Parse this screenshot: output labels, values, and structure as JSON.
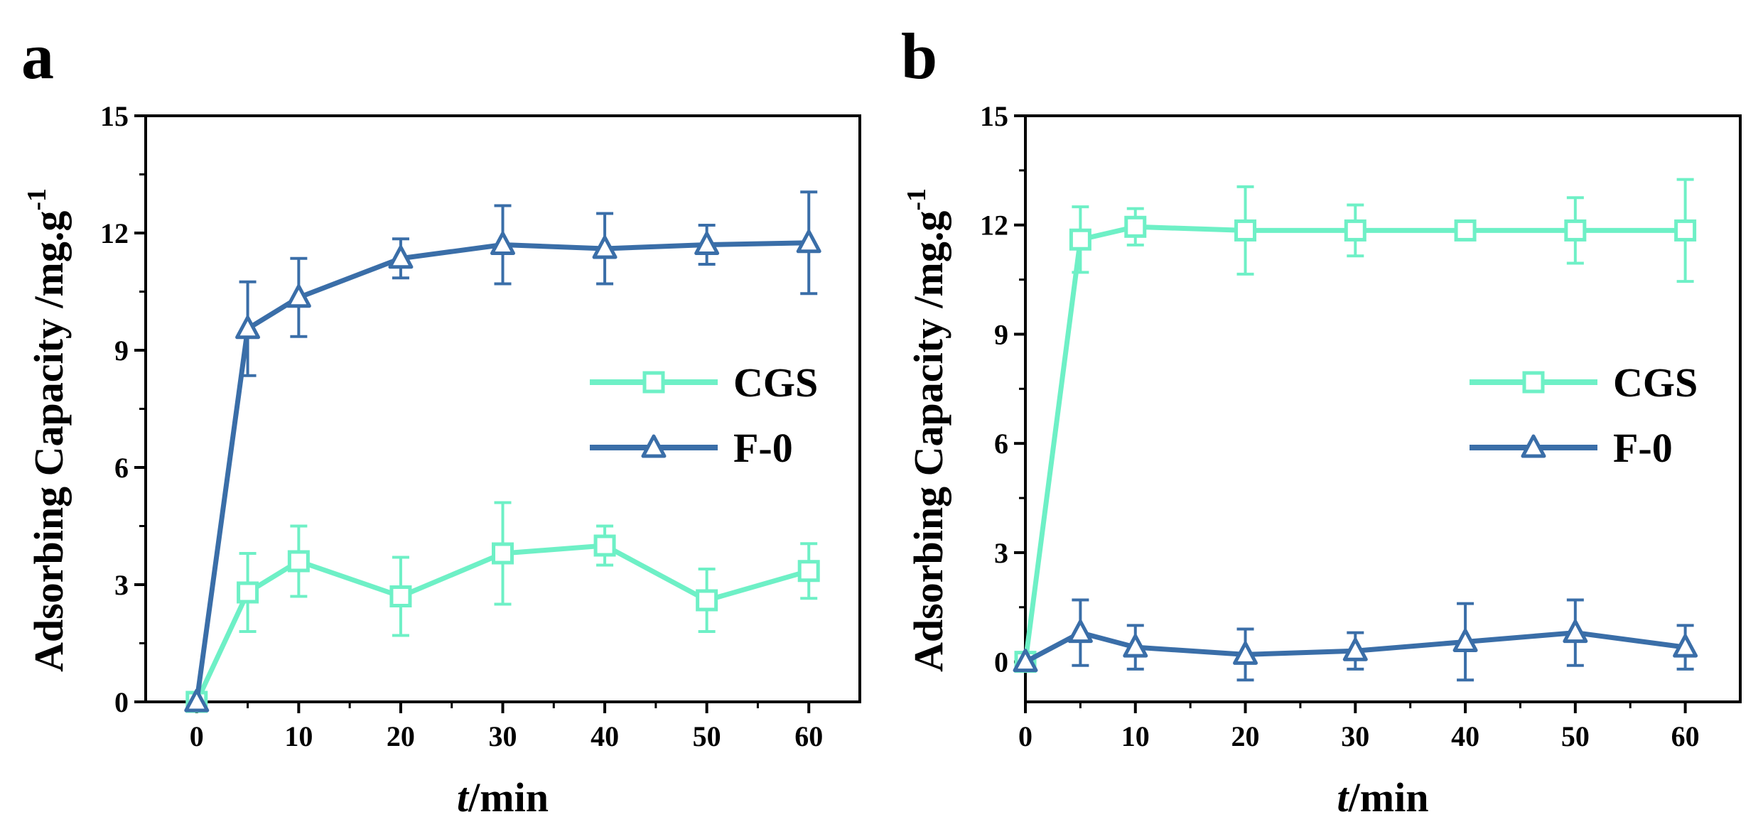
{
  "chart_data": [
    {
      "panel_label": "a",
      "type": "line",
      "xlabel_italic": "t",
      "xlabel_rest": "/min",
      "ylabel_main": "Adsorbing Capacity /mg.g",
      "ylabel_sup": "-1",
      "xlim": [
        -5,
        65
      ],
      "ylim": [
        0,
        15
      ],
      "xticks": [
        0,
        10,
        20,
        30,
        40,
        50,
        60
      ],
      "xtick_labels": [
        "0",
        "10",
        "20",
        "30",
        "40",
        "50",
        "60"
      ],
      "yticks": [
        0,
        3,
        6,
        9,
        12,
        15
      ],
      "ytick_labels": [
        "0",
        "3",
        "6",
        "9",
        "12",
        "15"
      ],
      "legend_position": "right-middle",
      "x": [
        0,
        5,
        10,
        20,
        30,
        40,
        50,
        60
      ],
      "series": [
        {
          "name": "CGS",
          "marker": "square",
          "color": "#6ef0c6",
          "values": [
            0,
            2.8,
            3.6,
            2.7,
            3.8,
            4.0,
            2.6,
            3.35
          ],
          "errors": [
            0,
            1.0,
            0.9,
            1.0,
            1.3,
            0.5,
            0.8,
            0.7
          ]
        },
        {
          "name": "F-0",
          "marker": "triangle",
          "color": "#3a6ea8",
          "values": [
            0,
            9.55,
            10.35,
            11.35,
            11.7,
            11.6,
            11.7,
            11.75
          ],
          "errors": [
            0,
            1.2,
            1.0,
            0.5,
            1.0,
            0.9,
            0.5,
            1.3
          ]
        }
      ]
    },
    {
      "panel_label": "b",
      "type": "line",
      "xlabel_italic": "t",
      "xlabel_rest": "/min",
      "ylabel_main": "Adsorbing Capacity /mg.g",
      "ylabel_sup": "-1",
      "xlim": [
        0,
        65
      ],
      "ylim": [
        -1.1,
        15
      ],
      "xticks": [
        0,
        10,
        20,
        30,
        40,
        50,
        60
      ],
      "xtick_labels": [
        "0",
        "10",
        "20",
        "30",
        "40",
        "50",
        "60"
      ],
      "yticks": [
        0,
        3,
        6,
        9,
        12,
        15
      ],
      "ytick_labels": [
        "0",
        "3",
        "6",
        "9",
        "12",
        "15"
      ],
      "legend_position": "right-middle",
      "x": [
        0,
        5,
        10,
        20,
        30,
        40,
        50,
        60
      ],
      "series": [
        {
          "name": "CGS",
          "marker": "square",
          "color": "#6ef0c6",
          "values": [
            0,
            11.6,
            11.95,
            11.85,
            11.85,
            11.85,
            11.85,
            11.85
          ],
          "errors": [
            0,
            0.9,
            0.5,
            1.2,
            0.7,
            0.25,
            0.9,
            1.4
          ]
        },
        {
          "name": "F-0",
          "marker": "triangle",
          "color": "#3a6ea8",
          "values": [
            0,
            0.8,
            0.4,
            0.2,
            0.3,
            0.55,
            0.8,
            0.4
          ],
          "errors": [
            0,
            0.9,
            0.6,
            0.7,
            0.5,
            1.05,
            0.9,
            0.6
          ]
        }
      ]
    }
  ]
}
